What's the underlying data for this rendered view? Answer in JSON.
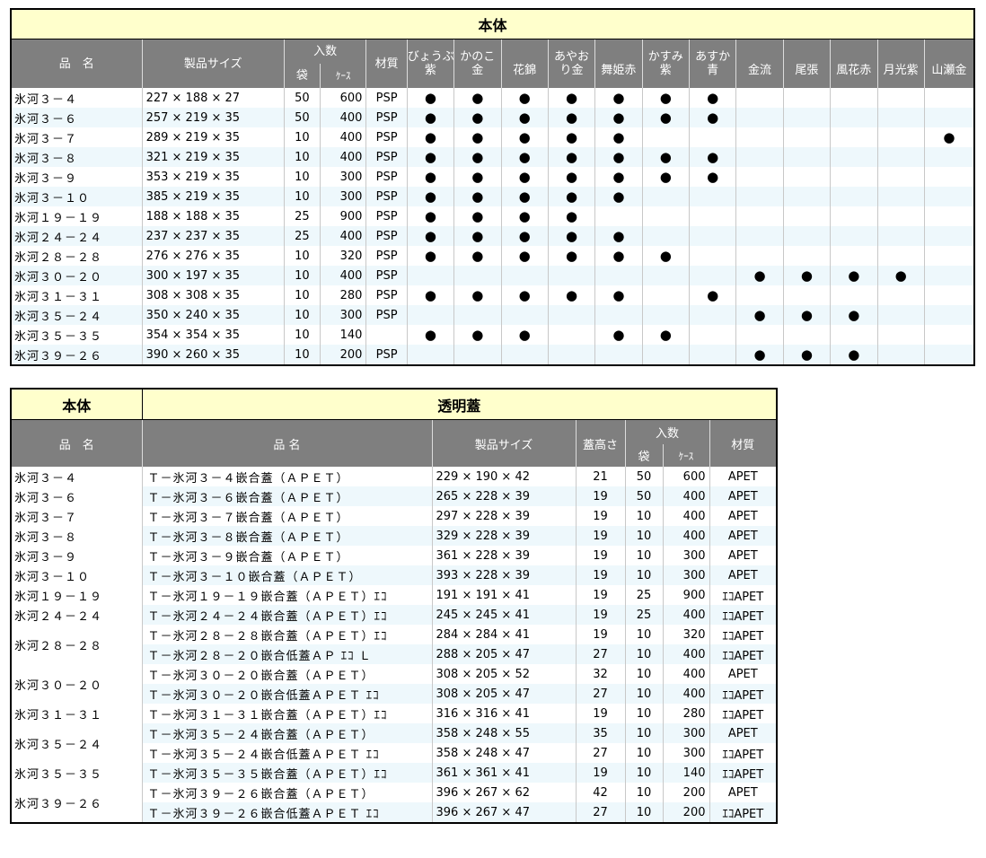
{
  "table1": {
    "title": "本体",
    "headers": {
      "name": "品　名",
      "size": "製品サイズ",
      "qty": "入数",
      "bag": "袋",
      "case": "ｹｰｽ",
      "material": "材質",
      "colors": [
        [
          "びょうぶ",
          "紫"
        ],
        [
          "かのこ",
          "金"
        ],
        [
          "",
          "花錦"
        ],
        [
          "あやお",
          "り金"
        ],
        [
          "",
          "舞姫赤"
        ],
        [
          "かすみ",
          "紫"
        ],
        [
          "あすか",
          "青"
        ],
        [
          "",
          "金流"
        ],
        [
          "",
          "尾張"
        ],
        [
          "",
          "風花赤"
        ],
        [
          "",
          "月光紫"
        ],
        [
          "",
          "山瀬金"
        ]
      ]
    },
    "rows": [
      {
        "name": "氷河３－４",
        "size": "227 × 188 × 27",
        "bag": "50",
        "case": "600",
        "material": "PSP",
        "dots": [
          1,
          1,
          1,
          1,
          1,
          1,
          1,
          0,
          0,
          0,
          0,
          0
        ]
      },
      {
        "name": "氷河３－６",
        "size": "257 × 219 × 35",
        "bag": "50",
        "case": "400",
        "material": "PSP",
        "dots": [
          1,
          1,
          1,
          1,
          1,
          1,
          1,
          0,
          0,
          0,
          0,
          0
        ]
      },
      {
        "name": "氷河３－７",
        "size": "289 × 219 × 35",
        "bag": "10",
        "case": "400",
        "material": "PSP",
        "dots": [
          1,
          1,
          1,
          1,
          1,
          0,
          0,
          0,
          0,
          0,
          0,
          1
        ]
      },
      {
        "name": "氷河３－８",
        "size": "321 × 219 × 35",
        "bag": "10",
        "case": "400",
        "material": "PSP",
        "dots": [
          1,
          1,
          1,
          1,
          1,
          1,
          1,
          0,
          0,
          0,
          0,
          0
        ]
      },
      {
        "name": "氷河３－９",
        "size": "353 × 219 × 35",
        "bag": "10",
        "case": "300",
        "material": "PSP",
        "dots": [
          1,
          1,
          1,
          1,
          1,
          1,
          1,
          0,
          0,
          0,
          0,
          0
        ]
      },
      {
        "name": "氷河３－１０",
        "size": "385 × 219 × 35",
        "bag": "10",
        "case": "300",
        "material": "PSP",
        "dots": [
          1,
          1,
          1,
          1,
          1,
          0,
          0,
          0,
          0,
          0,
          0,
          0
        ]
      },
      {
        "name": "氷河１９－１９",
        "size": "188 × 188 × 35",
        "bag": "25",
        "case": "900",
        "material": "PSP",
        "dots": [
          1,
          1,
          1,
          1,
          0,
          0,
          0,
          0,
          0,
          0,
          0,
          0
        ]
      },
      {
        "name": "氷河２４－２４",
        "size": "237 × 237 × 35",
        "bag": "25",
        "case": "400",
        "material": "PSP",
        "dots": [
          1,
          1,
          1,
          1,
          1,
          0,
          0,
          0,
          0,
          0,
          0,
          0
        ]
      },
      {
        "name": "氷河２８－２８",
        "size": "276 × 276 × 35",
        "bag": "10",
        "case": "320",
        "material": "PSP",
        "dots": [
          1,
          1,
          1,
          1,
          1,
          1,
          0,
          0,
          0,
          0,
          0,
          0
        ]
      },
      {
        "name": "氷河３０－２０",
        "size": "300 × 197 × 35",
        "bag": "10",
        "case": "400",
        "material": "PSP",
        "dots": [
          0,
          0,
          0,
          0,
          0,
          0,
          0,
          1,
          1,
          1,
          1,
          0
        ]
      },
      {
        "name": "氷河３１－３１",
        "size": "308 × 308 × 35",
        "bag": "10",
        "case": "280",
        "material": "PSP",
        "dots": [
          1,
          1,
          1,
          1,
          1,
          0,
          1,
          0,
          0,
          0,
          0,
          0
        ]
      },
      {
        "name": "氷河３５－２４",
        "size": "350 × 240 × 35",
        "bag": "10",
        "case": "300",
        "material": "PSP",
        "dots": [
          0,
          0,
          0,
          0,
          0,
          0,
          0,
          1,
          1,
          1,
          0,
          0
        ]
      },
      {
        "name": "氷河３５－３５",
        "size": "354 × 354 × 35",
        "bag": "10",
        "case": "140",
        "material": "",
        "dots": [
          1,
          1,
          1,
          0,
          1,
          1,
          0,
          0,
          0,
          0,
          0,
          0
        ]
      },
      {
        "name": "氷河３９－２６",
        "size": "390 × 260 × 35",
        "bag": "10",
        "case": "200",
        "material": "PSP",
        "dots": [
          0,
          0,
          0,
          0,
          0,
          0,
          0,
          1,
          1,
          1,
          0,
          0
        ]
      }
    ],
    "dot_glyph": "●"
  },
  "table2": {
    "title_left": "本体",
    "title_right": "透明蓋",
    "headers": {
      "name": "品　名",
      "lid_name": "品 名",
      "size": "製品サイズ",
      "height": "蓋高さ",
      "qty": "入数",
      "bag": "袋",
      "case": "ｹｰｽ",
      "material": "材質"
    },
    "groups": [
      {
        "base": "氷河３－４",
        "lids": [
          {
            "name": "Ｔ－氷河３－４嵌合蓋（ＡＰＥＴ）",
            "size": "229 × 190 × 42",
            "height": "21",
            "bag": "50",
            "case": "600",
            "material": "APET"
          }
        ]
      },
      {
        "base": "氷河３－６",
        "lids": [
          {
            "name": "Ｔ－氷河３－６嵌合蓋（ＡＰＥＴ）",
            "size": "265 × 228 × 39",
            "height": "19",
            "bag": "50",
            "case": "400",
            "material": "APET"
          }
        ]
      },
      {
        "base": "氷河３－７",
        "lids": [
          {
            "name": "Ｔ－氷河３－７嵌合蓋（ＡＰＥＴ）",
            "size": "297 × 228 × 39",
            "height": "19",
            "bag": "10",
            "case": "400",
            "material": "APET"
          }
        ]
      },
      {
        "base": "氷河３－８",
        "lids": [
          {
            "name": "Ｔ－氷河３－８嵌合蓋（ＡＰＥＴ）",
            "size": "329 × 228 × 39",
            "height": "19",
            "bag": "10",
            "case": "400",
            "material": "APET"
          }
        ]
      },
      {
        "base": "氷河３－９",
        "lids": [
          {
            "name": "Ｔ－氷河３－９嵌合蓋（ＡＰＥＴ）",
            "size": "361 × 228 × 39",
            "height": "19",
            "bag": "10",
            "case": "300",
            "material": "APET"
          }
        ]
      },
      {
        "base": "氷河３－１０",
        "lids": [
          {
            "name": "Ｔ－氷河３－１０嵌合蓋（ＡＰＥＴ）",
            "size": "393 × 228 × 39",
            "height": "19",
            "bag": "10",
            "case": "300",
            "material": "APET"
          }
        ]
      },
      {
        "base": "氷河１９－１９",
        "lids": [
          {
            "name": "Ｔ－氷河１９－１９嵌合蓋（ＡＰＥＴ）ｴｺ",
            "size": "191 × 191 × 41",
            "height": "19",
            "bag": "25",
            "case": "900",
            "material": "ｴｺAPET"
          }
        ]
      },
      {
        "base": "氷河２４－２４",
        "lids": [
          {
            "name": "Ｔ－氷河２４－２４嵌合蓋（ＡＰＥＴ）ｴｺ",
            "size": "245 × 245 × 41",
            "height": "19",
            "bag": "25",
            "case": "400",
            "material": "ｴｺAPET"
          }
        ]
      },
      {
        "base": "氷河２８－２８",
        "lids": [
          {
            "name": "Ｔ－氷河２８－２８嵌合蓋（ＡＰＥＴ）ｴｺ",
            "size": "284 × 284 × 41",
            "height": "19",
            "bag": "10",
            "case": "320",
            "material": "ｴｺAPET"
          },
          {
            "name": "Ｔ－氷河２８－２０嵌合低蓋ＡＰ ｴｺ Ｌ",
            "size": "288 × 205 × 47",
            "height": "27",
            "bag": "10",
            "case": "400",
            "material": "ｴｺAPET"
          }
        ]
      },
      {
        "base": "氷河３０－２０",
        "lids": [
          {
            "name": "Ｔ－氷河３０－２０嵌合蓋（ＡＰＥＴ）",
            "size": "308 × 205 × 52",
            "height": "32",
            "bag": "10",
            "case": "400",
            "material": "APET"
          },
          {
            "name": "Ｔ－氷河３０－２０嵌合低蓋ＡＰＥＴ ｴｺ",
            "size": "308 × 205 × 47",
            "height": "27",
            "bag": "10",
            "case": "400",
            "material": "ｴｺAPET"
          }
        ]
      },
      {
        "base": "氷河３１－３１",
        "lids": [
          {
            "name": "Ｔ－氷河３１－３１嵌合蓋（ＡＰＥＴ）ｴｺ",
            "size": "316 × 316 × 41",
            "height": "19",
            "bag": "10",
            "case": "280",
            "material": "ｴｺAPET"
          }
        ]
      },
      {
        "base": "氷河３５－２４",
        "lids": [
          {
            "name": "Ｔ－氷河３５－２４嵌合蓋（ＡＰＥＴ）",
            "size": "358 × 248 × 55",
            "height": "35",
            "bag": "10",
            "case": "300",
            "material": "APET"
          },
          {
            "name": "Ｔ－氷河３５－２４嵌合低蓋ＡＰＥＴ ｴｺ",
            "size": "358 × 248 × 47",
            "height": "27",
            "bag": "10",
            "case": "300",
            "material": "ｴｺAPET"
          }
        ]
      },
      {
        "base": "氷河３５－３５",
        "lids": [
          {
            "name": "Ｔ－氷河３５－３５嵌合蓋（ＡＰＥＴ）ｴｺ",
            "size": "361 × 361 × 41",
            "height": "19",
            "bag": "10",
            "case": "140",
            "material": "ｴｺAPET"
          }
        ]
      },
      {
        "base": "氷河３９－２６",
        "lids": [
          {
            "name": "Ｔ－氷河３９－２６嵌合蓋（ＡＰＥＴ）",
            "size": "396 × 267 × 62",
            "height": "42",
            "bag": "10",
            "case": "200",
            "material": "APET"
          },
          {
            "name": "Ｔ－氷河３９－２６嵌合低蓋ＡＰＥＴ ｴｺ",
            "size": "396 × 267 × 47",
            "height": "27",
            "bag": "10",
            "case": "200",
            "material": "ｴｺAPET"
          }
        ]
      }
    ]
  }
}
